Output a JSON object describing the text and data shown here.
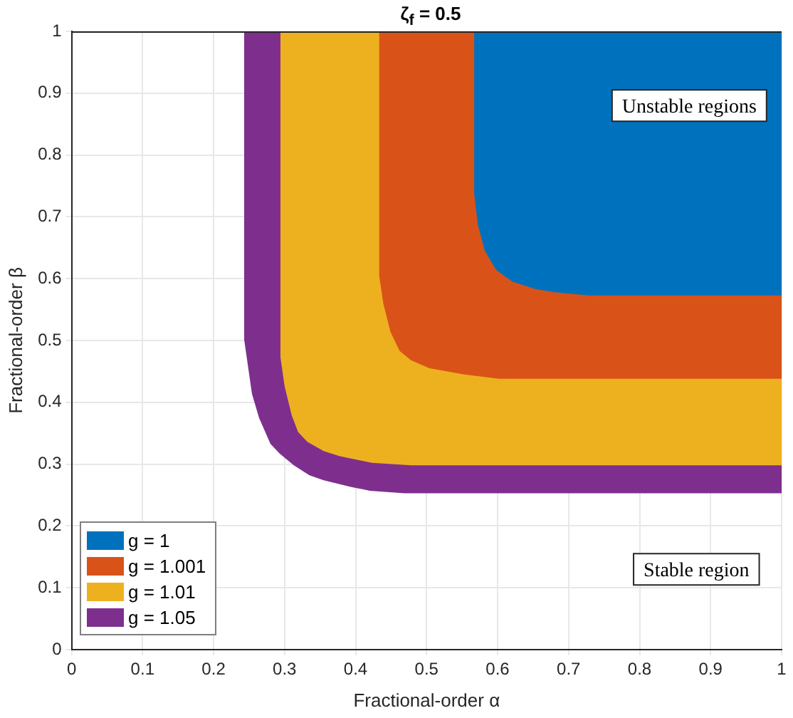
{
  "chart_data": {
    "type": "area",
    "title": "ζ$_{f}$ = 0.5",
    "xlabel": "Fractional-order α",
    "ylabel": "Fractional-order β",
    "xlim": [
      0,
      1
    ],
    "ylim": [
      0,
      1
    ],
    "xticks": [
      0,
      0.1,
      0.2,
      0.3,
      0.4,
      0.5,
      0.6,
      0.7,
      0.8,
      0.9,
      1
    ],
    "yticks": [
      0,
      0.1,
      0.2,
      0.3,
      0.4,
      0.5,
      0.6,
      0.7,
      0.8,
      0.9,
      1
    ],
    "grid": true,
    "legend": "bottom left",
    "marker": "none",
    "annotations": [
      "Unstable regions",
      "Stable region"
    ],
    "series": [
      {
        "name": "g = 1",
        "color": "#0072bd",
        "x": [
          0.567,
          0.567,
          0.572,
          0.582,
          0.598,
          0.621,
          0.654,
          0.68,
          0.729,
          1,
          1
        ],
        "values": [
          1,
          0.738,
          0.688,
          0.645,
          0.614,
          0.595,
          0.583,
          0.578,
          0.573,
          0.573,
          1
        ]
      },
      {
        "name": "g = 1.001",
        "color": "#d95319",
        "x": [
          0.433,
          0.433,
          0.439,
          0.449,
          0.462,
          0.478,
          0.504,
          0.553,
          0.602,
          1,
          1
        ],
        "values": [
          1,
          0.606,
          0.56,
          0.514,
          0.483,
          0.468,
          0.455,
          0.445,
          0.438,
          0.438,
          1
        ]
      },
      {
        "name": "g = 1.01",
        "color": "#edb120",
        "x": [
          0.294,
          0.294,
          0.3,
          0.31,
          0.319,
          0.332,
          0.355,
          0.377,
          0.423,
          0.478,
          1,
          1
        ],
        "values": [
          1,
          0.474,
          0.426,
          0.379,
          0.352,
          0.336,
          0.321,
          0.313,
          0.302,
          0.298,
          0.298,
          1
        ]
      },
      {
        "name": "g = 1.05",
        "color": "#7e2f8e",
        "x": [
          0.243,
          0.243,
          0.254,
          0.264,
          0.28,
          0.293,
          0.313,
          0.335,
          0.355,
          0.394,
          0.42,
          0.469,
          1,
          1
        ],
        "values": [
          1,
          0.502,
          0.414,
          0.375,
          0.333,
          0.317,
          0.298,
          0.282,
          0.274,
          0.263,
          0.257,
          0.253,
          0.253,
          1
        ]
      }
    ]
  }
}
